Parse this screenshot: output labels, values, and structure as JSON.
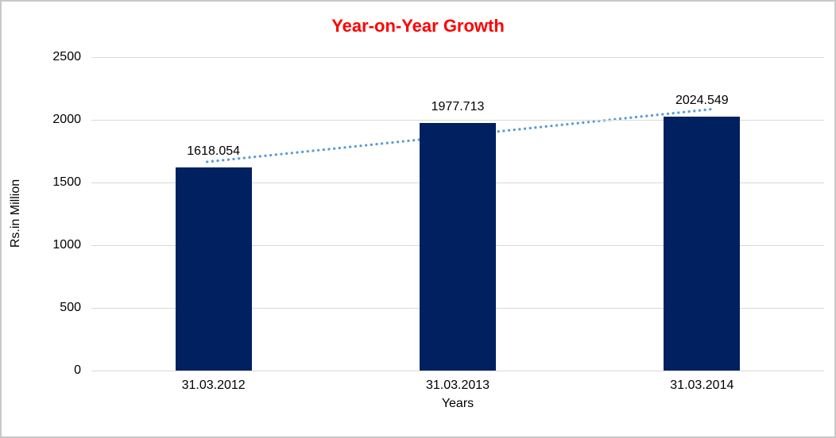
{
  "chart_data": {
    "type": "bar",
    "title": "Year-on-Year Growth",
    "title_color": "#ff0000",
    "categories": [
      "31.03.2012",
      "31.03.2013",
      "31.03.2014"
    ],
    "values": [
      1618.054,
      1977.713,
      2024.549
    ],
    "xlabel": "Years",
    "ylabel": "Rs.in Million",
    "ylim": [
      0,
      2500
    ],
    "ytick_step": 500,
    "ytick_labels": [
      "0",
      "500",
      "1000",
      "1500",
      "2000",
      "2500"
    ],
    "grid": true,
    "legend": "none",
    "bar_color": "#002060",
    "gridline_color": "#d9d9d9",
    "trendline": {
      "kind": "linear",
      "style": "dotted",
      "color": "#5b9bd5"
    }
  }
}
